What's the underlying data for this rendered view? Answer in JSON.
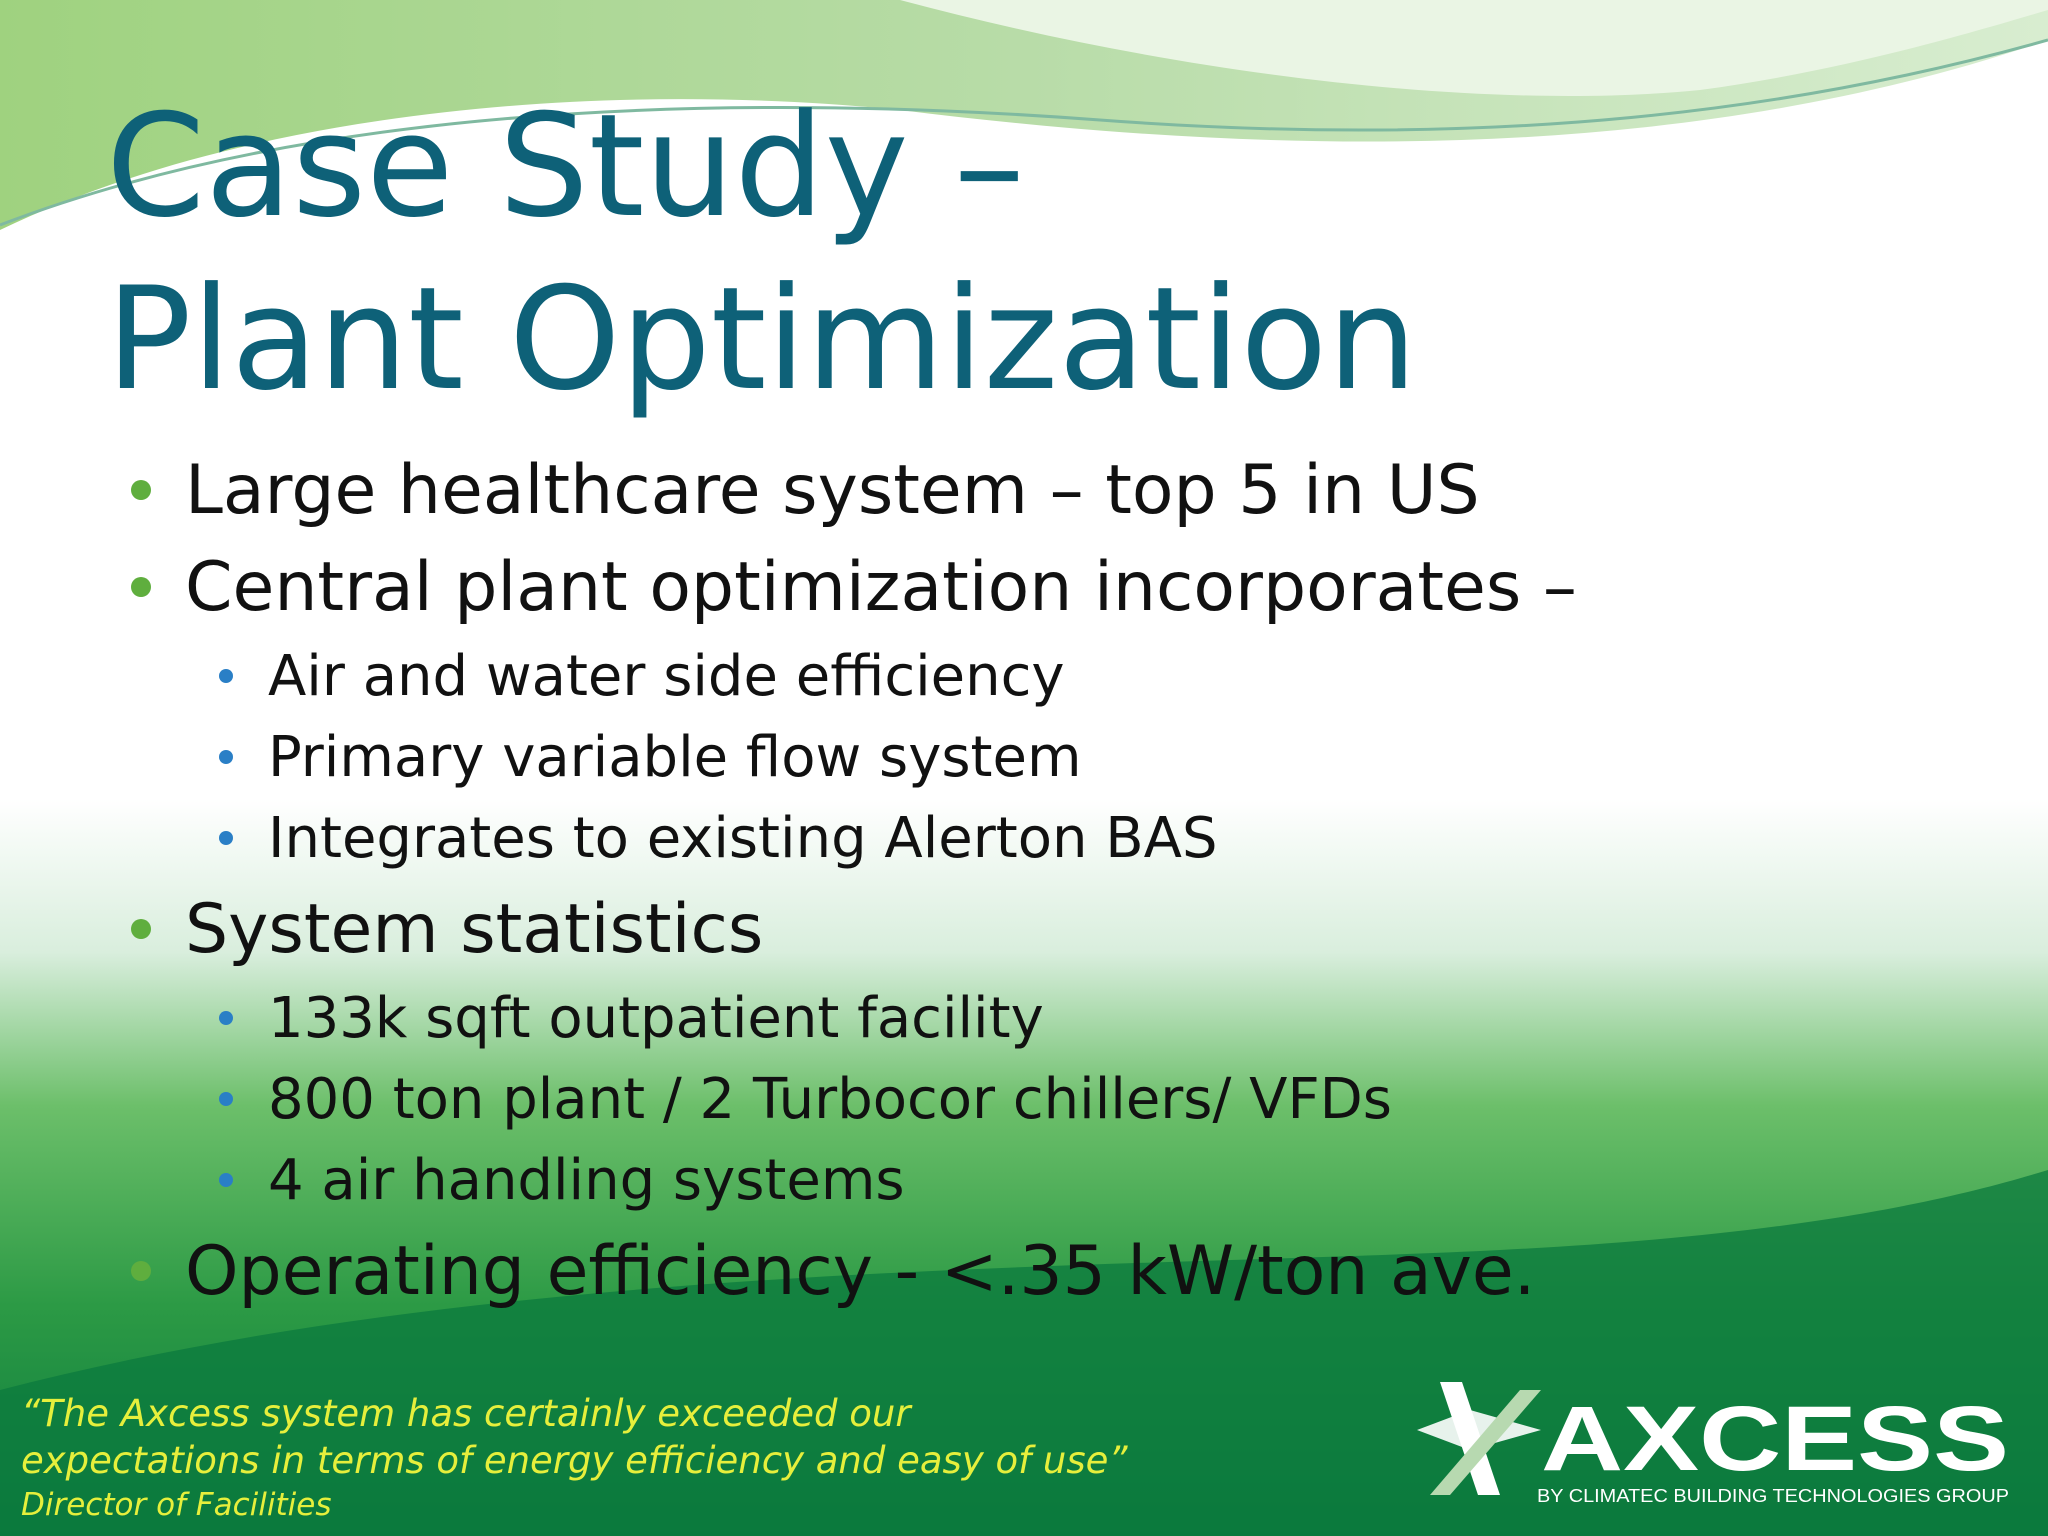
{
  "slide": {
    "title": [
      "Case Study –",
      "Plant Optimization"
    ],
    "bullets": [
      {
        "text": "Large healthcare system – top 5 in US"
      },
      {
        "text": "Central plant optimization incorporates –",
        "sub": [
          "Air and water side efficiency",
          "Primary variable flow system",
          "Integrates to existing Alerton BAS"
        ]
      },
      {
        "text": "System statistics",
        "sub": [
          "133k sqft outpatient facility",
          "800 ton plant / 2 Turbocor chillers/ VFDs",
          "4 air handling systems"
        ]
      },
      {
        "text": "Operating efficiency - <.35 kW/ton ave."
      }
    ],
    "quote": [
      "“The Axcess system has certainly exceeded our",
      "expectations in terms of energy efficiency and easy of use”"
    ],
    "attribution": "Director of Facilities",
    "logo": {
      "name": "AXCESS",
      "tagline": "BY CLIMATEC BUILDING TECHNOLOGIES GROUP"
    }
  }
}
